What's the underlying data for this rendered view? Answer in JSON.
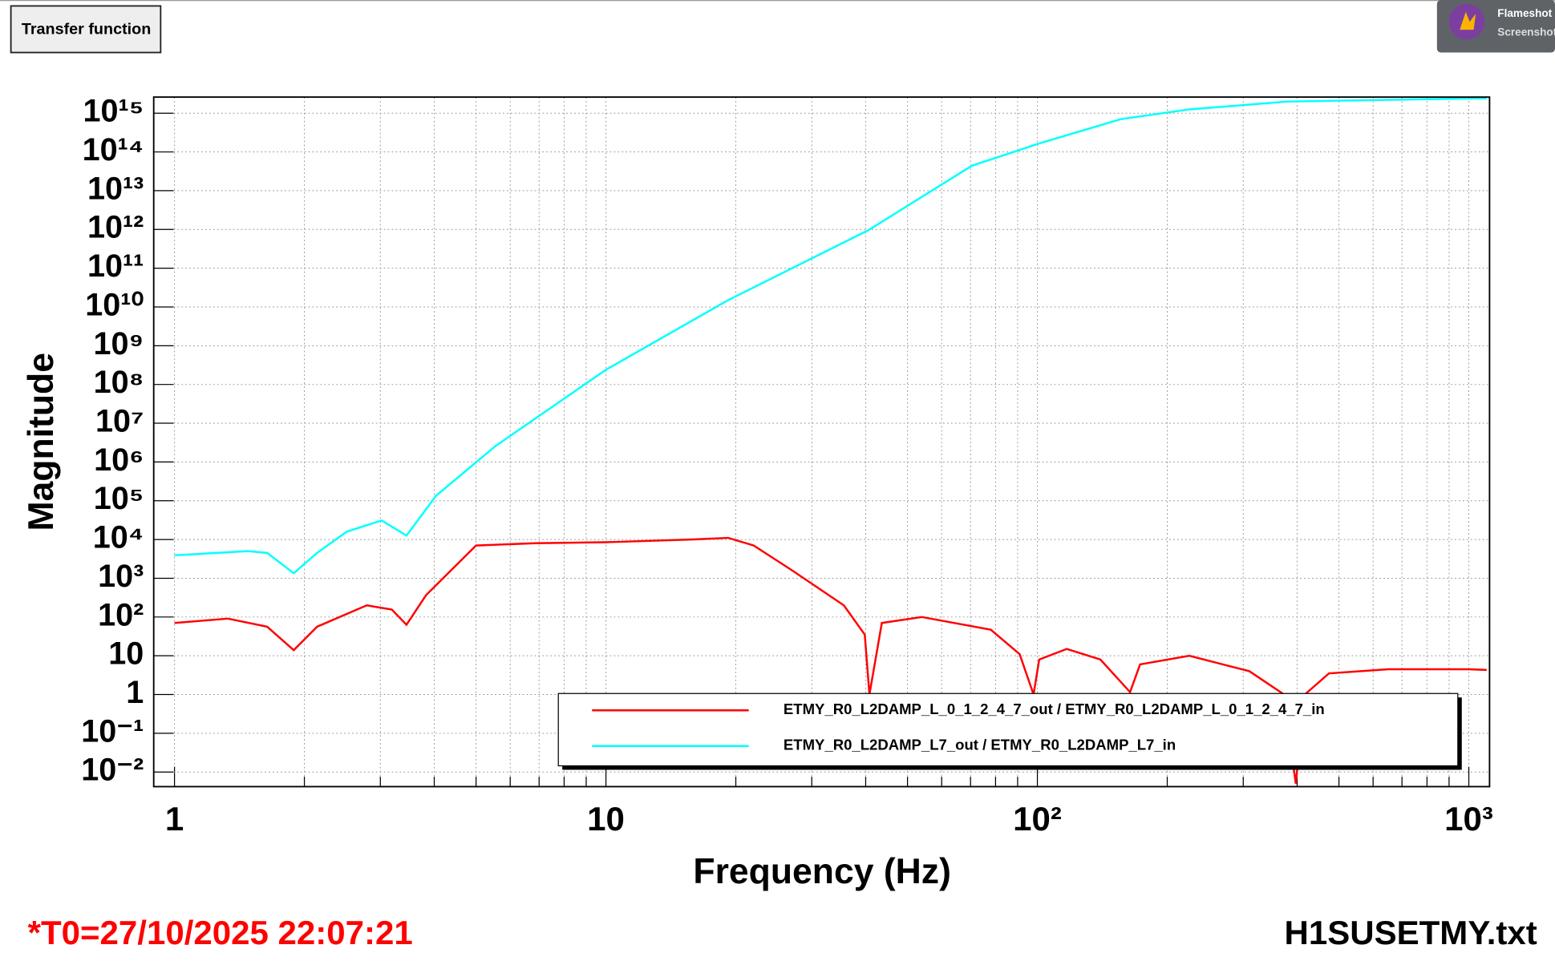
{
  "chart_data": {
    "type": "line",
    "log_x": true,
    "log_y": true,
    "x_label": "Frequency (Hz)",
    "y_label": "Magnitude",
    "xlim": [
      0.895,
      1117
    ],
    "ylim": [
      0.0042,
      2600000000000000.0
    ],
    "xticks": [
      1,
      10,
      {
        "value": 100,
        "label": "10²"
      },
      {
        "value": 1000,
        "label": "10³"
      }
    ],
    "xminorticks": [
      2,
      3,
      4,
      5,
      6,
      7,
      8,
      9,
      20,
      30,
      40,
      50,
      60,
      70,
      80,
      90,
      200,
      300,
      400,
      500,
      600,
      700,
      800,
      900
    ],
    "yticks": [
      {
        "value": 0.01,
        "label": "10⁻²"
      },
      {
        "value": 0.1,
        "label": "10⁻¹"
      },
      1,
      10,
      {
        "value": 100,
        "label": "10²"
      },
      {
        "value": 1000,
        "label": "10³"
      },
      {
        "value": 10000,
        "label": "10⁴"
      },
      {
        "value": 100000,
        "label": "10⁵"
      },
      {
        "value": 1000000,
        "label": "10⁶"
      },
      {
        "value": 10000000,
        "label": "10⁷"
      },
      {
        "value": 100000000,
        "label": "10⁸"
      },
      {
        "value": 1000000000,
        "label": "10⁹"
      },
      {
        "value": 10000000000,
        "label": "10¹⁰"
      },
      {
        "value": 100000000000,
        "label": "10¹¹"
      },
      {
        "value": 1000000000000,
        "label": "10¹²"
      },
      {
        "value": 10000000000000,
        "label": "10¹³"
      },
      {
        "value": 100000000000000,
        "label": "10¹⁴"
      },
      {
        "value": 1000000000000000,
        "label": "10¹⁵"
      }
    ],
    "grid": true,
    "series": [
      {
        "name": "ETMY_R0_L2DAMP_L_0_1_2_4_7_out / ETMY_R0_L2DAMP_L_0_1_2_4_7_in",
        "color": "#ff0000",
        "x": [
          1,
          1.33,
          1.64,
          1.89,
          2.14,
          2.79,
          3.19,
          3.45,
          3.83,
          5.0,
          6.85,
          10,
          16,
          19.2,
          22,
          27,
          35.6,
          39.8,
          40.8,
          43.6,
          54,
          78,
          91,
          98,
          101,
          117,
          140,
          164,
          173,
          225,
          310,
          373,
          397,
          417,
          474,
          650,
          1000,
          1100
        ],
        "values": [
          70,
          91,
          56,
          14,
          56,
          200,
          155,
          63,
          370,
          7000,
          8000,
          8500,
          10000,
          11000,
          7000,
          1600,
          200,
          35,
          1,
          70,
          100,
          47,
          11,
          1,
          8,
          15,
          8,
          1.15,
          6,
          10,
          4,
          1,
          0.005,
          1,
          3.5,
          4.5,
          4.5,
          4.3
        ]
      },
      {
        "name": "ETMY_R0_L2DAMP_L7_out / ETMY_R0_L2DAMP_L7_in",
        "color": "#00ffff",
        "x": [
          1,
          1.48,
          1.64,
          1.89,
          2.14,
          2.51,
          3.02,
          3.45,
          4.04,
          5.55,
          10,
          19.2,
          40.6,
          70.5,
          100,
          156,
          225,
          380,
          1000,
          1100
        ],
        "values": [
          3900,
          5000,
          4500,
          1350,
          4500,
          16000,
          31000,
          12600,
          135000,
          2600000,
          240000000,
          15000000000,
          960000000000,
          44000000000000,
          160000000000000,
          700000000000000,
          1250000000000000,
          2000000000000000,
          2400000000000000,
          2400000000000000
        ]
      }
    ]
  },
  "ui": {
    "button": "Transfer function",
    "t0": "*T0=27/10/2025 22:07:21",
    "file": "H1SUSETMY.txt",
    "badge_title": "Flameshot",
    "badge_subtitle": "Screenshot"
  }
}
